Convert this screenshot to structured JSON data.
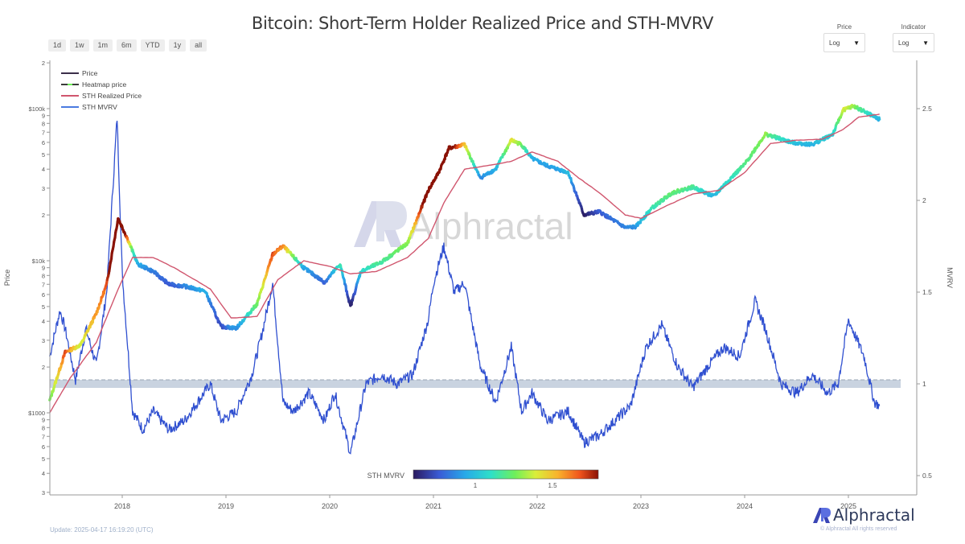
{
  "header": {
    "title": "Bitcoin: Short-Term Holder Realized Price and STH-MVRV"
  },
  "range_buttons": [
    "1d",
    "1w",
    "1m",
    "6m",
    "YTD",
    "1y",
    "all"
  ],
  "controls": {
    "price_scale": {
      "label": "Price",
      "value": "Log"
    },
    "indicator_scale": {
      "label": "Indicator",
      "value": "Log"
    }
  },
  "legend": [
    {
      "label": "Price",
      "color": "#3b2f4a"
    },
    {
      "label": "Heatmap price",
      "color": "#3b3b3b"
    },
    {
      "label": "STH Realized Price",
      "color": "#d0566e"
    },
    {
      "label": "STH MVRV",
      "color": "#4a7be0"
    }
  ],
  "colorbar": {
    "label": "STH MVRV",
    "ticks": [
      "1",
      "1.5"
    ],
    "colors": [
      "#2a1a5e",
      "#3a5bd6",
      "#27a9e9",
      "#2fe0c8",
      "#6fef5a",
      "#d9ee3a",
      "#f9b32c",
      "#f0541c",
      "#8a1206"
    ]
  },
  "watermark": "Alphractal",
  "footer": {
    "update": "Update: 2025-04-17 16:19:20 (UTC)",
    "brand": "Alphractal",
    "copyright": "© Alphractal All rights reserved"
  },
  "colors": {
    "realized_price": "#d0566e",
    "mvrv": "#3050d0",
    "band": "#c9d3e0",
    "axis": "#9a9a9a"
  },
  "chart_data": {
    "type": "line",
    "title": "Bitcoin: Short-Term Holder Realized Price and STH-MVRV",
    "xlabel": "",
    "ylabel": "Price",
    "y2label": "MVRV",
    "x_ticks": [
      "2018",
      "2019",
      "2020",
      "2021",
      "2022",
      "2023",
      "2024",
      "2025"
    ],
    "y_ticks_left": [
      "3",
      "4",
      "5",
      "6",
      "7",
      "8",
      "9",
      "$1000",
      "2",
      "3",
      "4",
      "5",
      "6",
      "7",
      "8",
      "9",
      "$10k",
      "2",
      "3",
      "4",
      "5",
      "6",
      "7",
      "8",
      "9",
      "$100k",
      "2"
    ],
    "y_ticks_right": [
      "0.5",
      "1",
      "1.5",
      "2",
      "2.5"
    ],
    "y_scale_left": "log",
    "ylim_left": [
      300,
      200000
    ],
    "ylim_right": [
      0.45,
      2.75
    ],
    "reference_band_mvrv": [
      0.98,
      1.02
    ],
    "reference_line_mvrv": 1.0,
    "legend_position": "top-left",
    "grid": false,
    "series": [
      {
        "name": "Price",
        "axis": "left",
        "x": [
          2017.3,
          2017.45,
          2017.6,
          2017.75,
          2017.85,
          2017.96,
          2018.05,
          2018.15,
          2018.3,
          2018.45,
          2018.6,
          2018.8,
          2018.95,
          2019.1,
          2019.3,
          2019.45,
          2019.55,
          2019.75,
          2019.95,
          2020.1,
          2020.2,
          2020.3,
          2020.5,
          2020.75,
          2020.95,
          2021.05,
          2021.15,
          2021.3,
          2021.45,
          2021.6,
          2021.75,
          2021.85,
          2021.95,
          2022.1,
          2022.3,
          2022.45,
          2022.6,
          2022.85,
          2022.95,
          2023.1,
          2023.3,
          2023.5,
          2023.7,
          2023.85,
          2024.0,
          2024.2,
          2024.45,
          2024.65,
          2024.85,
          2024.95,
          2025.05,
          2025.15,
          2025.3
        ],
        "values": [
          1200,
          2500,
          2800,
          4500,
          7000,
          19000,
          14000,
          9500,
          8500,
          7000,
          6800,
          6300,
          3700,
          3600,
          5200,
          11000,
          12500,
          9000,
          7200,
          9500,
          5000,
          8500,
          9800,
          13000,
          29000,
          38000,
          55000,
          58000,
          35000,
          40000,
          62000,
          58000,
          47000,
          42000,
          38000,
          20000,
          21000,
          16500,
          16700,
          22000,
          28000,
          30500,
          26500,
          34000,
          43000,
          68000,
          60000,
          58000,
          68000,
          98000,
          104000,
          96000,
          85000
        ]
      },
      {
        "name": "STH Realized Price",
        "axis": "left",
        "x": [
          2017.3,
          2017.5,
          2017.75,
          2017.96,
          2018.1,
          2018.3,
          2018.5,
          2018.7,
          2018.85,
          2019.05,
          2019.3,
          2019.5,
          2019.75,
          2020.0,
          2020.2,
          2020.45,
          2020.75,
          2020.95,
          2021.1,
          2021.3,
          2021.5,
          2021.75,
          2021.95,
          2022.2,
          2022.4,
          2022.6,
          2022.85,
          2023.0,
          2023.25,
          2023.5,
          2023.75,
          2024.0,
          2024.25,
          2024.5,
          2024.75,
          2024.95,
          2025.1,
          2025.3
        ],
        "values": [
          1000,
          1700,
          2900,
          6500,
          10500,
          10500,
          9000,
          7500,
          6500,
          4200,
          4300,
          7500,
          10000,
          9200,
          8200,
          8500,
          10500,
          14000,
          24000,
          40000,
          42000,
          45000,
          52000,
          45000,
          35000,
          28000,
          20000,
          19000,
          23000,
          27500,
          29000,
          38000,
          59000,
          62000,
          63000,
          73000,
          88000,
          92000
        ]
      },
      {
        "name": "STH MVRV",
        "axis": "right",
        "x": [
          2017.3,
          2017.4,
          2017.45,
          2017.55,
          2017.65,
          2017.75,
          2017.85,
          2017.95,
          2018.0,
          2018.1,
          2018.2,
          2018.3,
          2018.45,
          2018.6,
          2018.75,
          2018.85,
          2018.95,
          2019.1,
          2019.25,
          2019.35,
          2019.45,
          2019.55,
          2019.65,
          2019.8,
          2019.95,
          2020.05,
          2020.2,
          2020.35,
          2020.5,
          2020.65,
          2020.8,
          2020.95,
          2021.0,
          2021.1,
          2021.2,
          2021.3,
          2021.35,
          2021.45,
          2021.6,
          2021.75,
          2021.85,
          2021.95,
          2022.1,
          2022.3,
          2022.45,
          2022.6,
          2022.75,
          2022.9,
          2023.05,
          2023.2,
          2023.35,
          2023.5,
          2023.65,
          2023.8,
          2023.95,
          2024.1,
          2024.2,
          2024.35,
          2024.5,
          2024.65,
          2024.8,
          2024.9,
          2025.0,
          2025.15,
          2025.25,
          2025.3
        ],
        "values": [
          1.15,
          1.4,
          1.3,
          1.02,
          1.3,
          1.1,
          1.5,
          2.45,
          1.6,
          0.85,
          0.75,
          0.85,
          0.75,
          0.8,
          0.92,
          1.0,
          0.8,
          0.85,
          1.05,
          1.28,
          1.55,
          0.9,
          0.85,
          0.95,
          0.8,
          0.95,
          0.62,
          1.0,
          1.05,
          1.0,
          1.05,
          1.35,
          1.55,
          1.75,
          1.5,
          1.55,
          1.4,
          1.1,
          0.9,
          1.2,
          0.85,
          0.95,
          0.8,
          0.85,
          0.68,
          0.72,
          0.8,
          0.88,
          1.2,
          1.32,
          1.1,
          0.98,
          1.1,
          1.2,
          1.15,
          1.45,
          1.3,
          1.0,
          0.95,
          1.05,
          0.95,
          1.0,
          1.35,
          1.15,
          0.9,
          0.88
        ]
      }
    ]
  }
}
